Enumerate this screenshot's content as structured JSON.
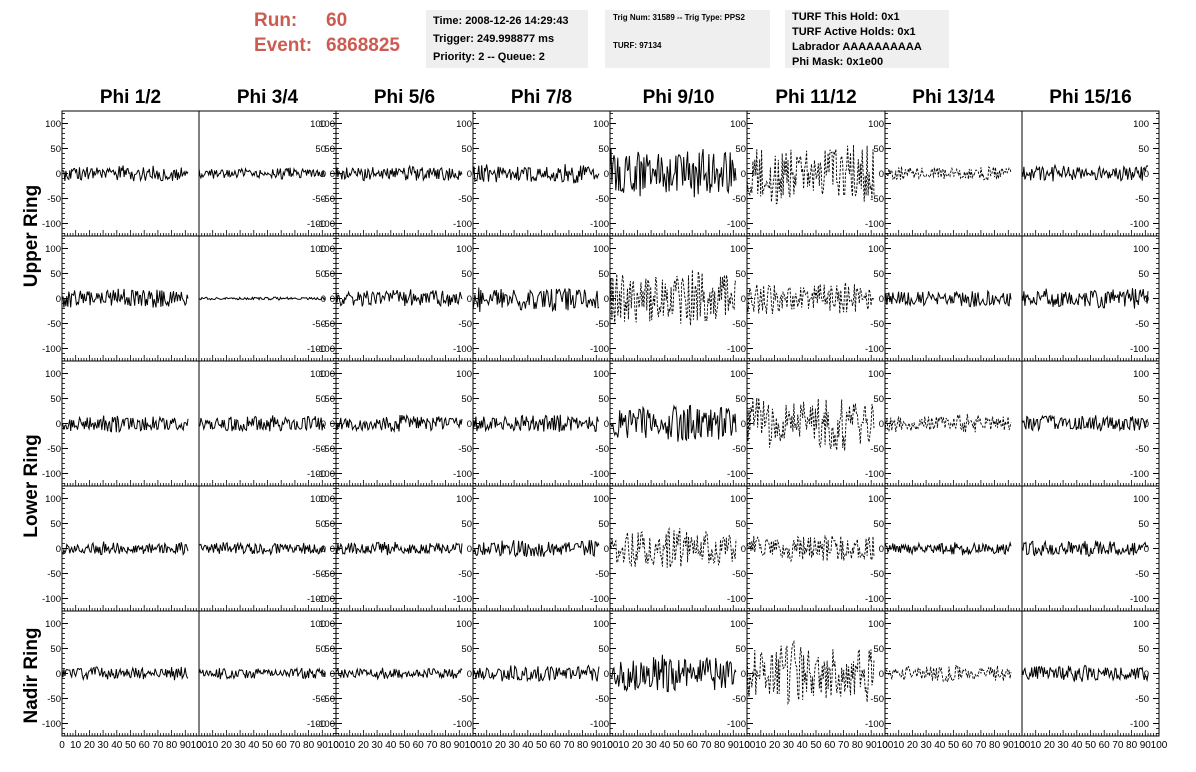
{
  "run": {
    "run_label": "Run:",
    "run_value": "60",
    "event_label": "Event:",
    "event_value": "6868825"
  },
  "info1": {
    "time": "Time: 2008-12-26 14:29:43",
    "trigger": "Trigger: 249.998877 ms",
    "priority": "Priority: 2 -- Queue: 2"
  },
  "info2": {
    "trig": "Trig Num: 31589 -- Trig Type: PPS2",
    "turf": "TURF: 97134"
  },
  "info3": {
    "hold": "TURF This Hold: 0x1",
    "active": "TURF Active Holds: 0x1",
    "labrador": "Labrador AAAAAAAAAA",
    "mask": "Phi Mask: 0x1e00"
  },
  "colors": {
    "run_text": "#cc5c52",
    "info_bg": "#efefef",
    "trace": "#000000"
  },
  "chart_data": {
    "type": "line",
    "columns": [
      "Phi 1/2",
      "Phi 3/4",
      "Phi 5/6",
      "Phi 7/8",
      "Phi 9/10",
      "Phi 11/12",
      "Phi 13/14",
      "Phi 15/16"
    ],
    "rows": [
      "Upper Ring",
      "Lower Ring",
      "Nadir Ring"
    ],
    "ylim": [
      -125,
      125
    ],
    "yticks": [
      -100,
      -50,
      0,
      50,
      100
    ],
    "xlim": [
      0,
      100
    ],
    "xticks": [
      0,
      10,
      20,
      30,
      40,
      50,
      60,
      70,
      80,
      90,
      100
    ],
    "panel_amplitudes": [
      [
        18,
        12,
        16,
        20,
        55,
        65,
        15,
        18
      ],
      [
        22,
        3,
        20,
        28,
        60,
        35,
        18,
        22
      ],
      [
        18,
        18,
        18,
        20,
        40,
        60,
        20,
        18
      ],
      [
        14,
        14,
        14,
        20,
        45,
        30,
        14,
        18
      ],
      [
        14,
        12,
        12,
        18,
        40,
        65,
        18,
        18
      ]
    ],
    "panel_dashed": [
      [
        false,
        false,
        false,
        false,
        false,
        true,
        true,
        false
      ],
      [
        false,
        false,
        false,
        false,
        true,
        true,
        false,
        false
      ],
      [
        false,
        false,
        false,
        false,
        false,
        true,
        true,
        false
      ],
      [
        false,
        false,
        false,
        false,
        true,
        true,
        false,
        false
      ],
      [
        false,
        false,
        false,
        false,
        false,
        true,
        true,
        false
      ]
    ],
    "panel_ticks_right": [
      false,
      true,
      false,
      false,
      false,
      false,
      false,
      true
    ]
  }
}
